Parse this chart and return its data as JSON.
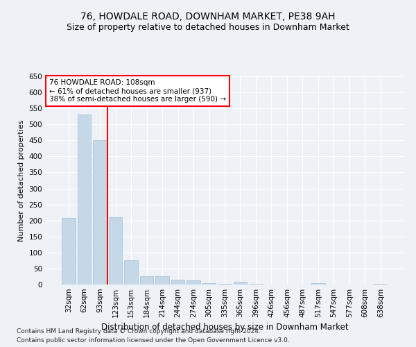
{
  "title1": "76, HOWDALE ROAD, DOWNHAM MARKET, PE38 9AH",
  "title2": "Size of property relative to detached houses in Downham Market",
  "xlabel": "Distribution of detached houses by size in Downham Market",
  "ylabel": "Number of detached properties",
  "footnote1": "Contains HM Land Registry data © Crown copyright and database right 2024.",
  "footnote2": "Contains public sector information licensed under the Open Government Licence v3.0.",
  "categories": [
    "32sqm",
    "62sqm",
    "93sqm",
    "123sqm",
    "153sqm",
    "184sqm",
    "214sqm",
    "244sqm",
    "274sqm",
    "305sqm",
    "335sqm",
    "365sqm",
    "396sqm",
    "426sqm",
    "456sqm",
    "487sqm",
    "517sqm",
    "547sqm",
    "577sqm",
    "608sqm",
    "638sqm"
  ],
  "values": [
    207,
    530,
    450,
    210,
    75,
    25,
    25,
    15,
    12,
    5,
    2,
    8,
    3,
    1,
    0,
    0,
    5,
    0,
    0,
    0,
    3
  ],
  "bar_color": "#c5d8e8",
  "bar_edge_color": "#a0bcd0",
  "annotation_line1": "76 HOWDALE ROAD: 108sqm",
  "annotation_line2": "← 61% of detached houses are smaller (937)",
  "annotation_line3": "38% of semi-detached houses are larger (590) →",
  "annotation_box_color": "white",
  "annotation_box_edge": "red",
  "vline_x": 2.5,
  "vline_color": "red",
  "ylim": [
    0,
    650
  ],
  "yticks": [
    0,
    50,
    100,
    150,
    200,
    250,
    300,
    350,
    400,
    450,
    500,
    550,
    600,
    650
  ],
  "bg_color": "#eef2f7",
  "grid_color": "white",
  "title1_fontsize": 10,
  "title2_fontsize": 9,
  "xlabel_fontsize": 8.5,
  "ylabel_fontsize": 8,
  "tick_fontsize": 7.5,
  "footnote_fontsize": 6.5,
  "annotation_fontsize": 7.5
}
